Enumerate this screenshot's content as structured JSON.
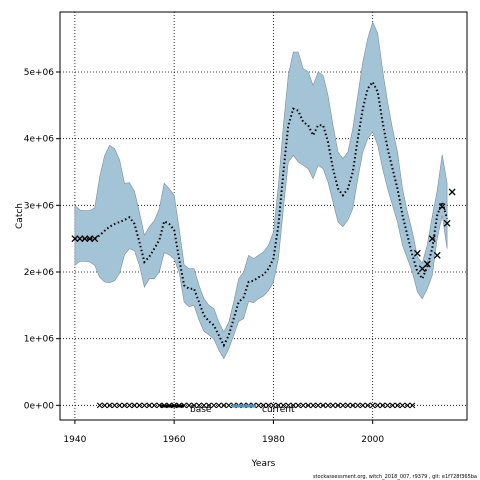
{
  "chart_data": {
    "type": "line",
    "xlabel": "Years",
    "ylabel": "Catch",
    "xlim": [
      1937,
      2019
    ],
    "ylim": [
      -220000,
      5900000
    ],
    "xticks": [
      1940,
      1960,
      1980,
      2000
    ],
    "yticks": [
      0,
      1000000,
      2000000,
      3000000,
      4000000,
      5000000
    ],
    "ytick_labels": [
      "0e+00",
      "1e+06",
      "2e+06",
      "3e+06",
      "4e+06",
      "5e+06"
    ],
    "grid": true,
    "legend": {
      "placement": "bottom-center",
      "entries": [
        {
          "name": "base",
          "color": "#000000"
        },
        {
          "name": "current",
          "color": "#4f93b8"
        }
      ]
    },
    "colors": {
      "band_fill": "#a3c3d6",
      "band_edge": "#7a8f9e",
      "line": "#000000",
      "point": "#000000"
    },
    "series": [
      {
        "name": "current",
        "kind": "confidence_band",
        "x": [
          1940,
          1941,
          1942,
          1943,
          1944,
          1945,
          1946,
          1947,
          1948,
          1949,
          1950,
          1951,
          1952,
          1953,
          1954,
          1955,
          1956,
          1957,
          1958,
          1959,
          1960,
          1961,
          1962,
          1963,
          1964,
          1965,
          1966,
          1967,
          1968,
          1969,
          1970,
          1971,
          1972,
          1973,
          1974,
          1975,
          1976,
          1977,
          1978,
          1979,
          1980,
          1981,
          1982,
          1983,
          1984,
          1985,
          1986,
          1987,
          1988,
          1989,
          1990,
          1991,
          1992,
          1993,
          1994,
          1995,
          1996,
          1997,
          1998,
          1999,
          2000,
          2001,
          2002,
          2003,
          2004,
          2005,
          2006,
          2007,
          2008,
          2009,
          2010,
          2011,
          2012,
          2013,
          2014,
          2015
        ],
        "upper": [
          3000000,
          2930000,
          2920000,
          2920000,
          2960000,
          3430000,
          3750000,
          3900000,
          3850000,
          3680000,
          3330000,
          3340000,
          3210000,
          2900000,
          2550000,
          2680000,
          2770000,
          2950000,
          3330000,
          3250000,
          3150000,
          2660000,
          2110000,
          2050000,
          2050000,
          1800000,
          1600000,
          1500000,
          1450000,
          1250000,
          1100000,
          1250000,
          1550000,
          1900000,
          2000000,
          2250000,
          2200000,
          2250000,
          2300000,
          2400000,
          2600000,
          3300000,
          4200000,
          4950000,
          5300000,
          5300000,
          5050000,
          5000000,
          4800000,
          5000000,
          4950000,
          4650000,
          4200000,
          3800000,
          3700000,
          3800000,
          4150000,
          4650000,
          5150000,
          5500000,
          5750000,
          5580000,
          5030000,
          4550000,
          4150000,
          3800000,
          3250000,
          2900000,
          2600000,
          2230000,
          2130000,
          2410000,
          2840000,
          3220000,
          3760000,
          3330000
        ],
        "lower": [
          2100000,
          2160000,
          2160000,
          2150000,
          2100000,
          1920000,
          1850000,
          1840000,
          1870000,
          1980000,
          2260000,
          2350000,
          2320000,
          2100000,
          1770000,
          1900000,
          1900000,
          2000000,
          2290000,
          2260000,
          2190000,
          2000000,
          1550000,
          1480000,
          1500000,
          1280000,
          1110000,
          1060000,
          990000,
          830000,
          700000,
          850000,
          1050000,
          1260000,
          1300000,
          1560000,
          1540000,
          1600000,
          1640000,
          1720000,
          1850000,
          2200000,
          2950000,
          3650000,
          3750000,
          3650000,
          3600000,
          3550000,
          3400000,
          3600000,
          3550000,
          3350000,
          3050000,
          2750000,
          2680000,
          2780000,
          2950000,
          3400000,
          3800000,
          4000000,
          4100000,
          3900000,
          3550000,
          3250000,
          3000000,
          2750000,
          2400000,
          2200000,
          2000000,
          1700000,
          1600000,
          1750000,
          1950000,
          2500000,
          2850000,
          2350000
        ]
      },
      {
        "name": "current",
        "kind": "estimate_line",
        "x": [
          1940,
          1941,
          1942,
          1943,
          1944,
          1945,
          1946,
          1947,
          1948,
          1949,
          1950,
          1951,
          1952,
          1953,
          1954,
          1955,
          1956,
          1957,
          1958,
          1959,
          1960,
          1961,
          1962,
          1963,
          1964,
          1965,
          1966,
          1967,
          1968,
          1969,
          1970,
          1971,
          1972,
          1973,
          1974,
          1975,
          1976,
          1977,
          1978,
          1979,
          1980,
          1981,
          1982,
          1983,
          1984,
          1985,
          1986,
          1987,
          1988,
          1989,
          1990,
          1991,
          1992,
          1993,
          1994,
          1995,
          1996,
          1997,
          1998,
          1999,
          2000,
          2001,
          2002,
          2003,
          2004,
          2005,
          2006,
          2007,
          2008,
          2009,
          2010,
          2011,
          2012,
          2013,
          2014,
          2015
        ],
        "y": [
          2500000,
          2500000,
          2500000,
          2500000,
          2500000,
          2550000,
          2620000,
          2680000,
          2720000,
          2750000,
          2780000,
          2820000,
          2720000,
          2450000,
          2150000,
          2230000,
          2350000,
          2480000,
          2760000,
          2720000,
          2630000,
          2200000,
          1800000,
          1750000,
          1750000,
          1550000,
          1350000,
          1260000,
          1200000,
          1050000,
          900000,
          1050000,
          1300000,
          1550000,
          1620000,
          1850000,
          1870000,
          1920000,
          1960000,
          2050000,
          2200000,
          2700000,
          3500000,
          4200000,
          4450000,
          4420000,
          4250000,
          4200000,
          4050000,
          4200000,
          4200000,
          3950000,
          3550000,
          3250000,
          3150000,
          3250000,
          3500000,
          4000000,
          4450000,
          4750000,
          4850000,
          4700000,
          4250000,
          3850000,
          3550000,
          3250000,
          2850000,
          2550000,
          2250000,
          2000000,
          1900000,
          2080000,
          2360000,
          2850000,
          3050000,
          2800000
        ]
      },
      {
        "name": "base",
        "kind": "observed_points",
        "x": [
          1940,
          1941,
          1942,
          1943,
          1944,
          2009,
          2010,
          2011,
          2012,
          2013,
          2014,
          2015,
          2016
        ],
        "y": [
          2500000,
          2500000,
          2500000,
          2500000,
          2500000,
          2280000,
          2050000,
          2120000,
          2500000,
          2250000,
          2980000,
          2730000,
          3200000
        ]
      },
      {
        "name": "base",
        "kind": "zero_markers",
        "x": [
          1945,
          1946,
          1947,
          1948,
          1949,
          1950,
          1951,
          1952,
          1953,
          1954,
          1955,
          1956,
          1957,
          1958,
          1959,
          1960,
          1961,
          1962,
          1963,
          1964,
          1965,
          1966,
          1967,
          1968,
          1969,
          1970,
          1971,
          1972,
          1973,
          1974,
          1975,
          1976,
          1977,
          1978,
          1979,
          1980,
          1981,
          1982,
          1983,
          1984,
          1985,
          1986,
          1987,
          1988,
          1989,
          1990,
          1991,
          1992,
          1993,
          1994,
          1995,
          1996,
          1997,
          1998,
          1999,
          2000,
          2001,
          2002,
          2003,
          2004,
          2005,
          2006,
          2007,
          2008
        ],
        "y": 0
      }
    ],
    "footer_text": "stockassessment.org, witch_2018_007, r9379 , git: e1f728f365ba"
  }
}
